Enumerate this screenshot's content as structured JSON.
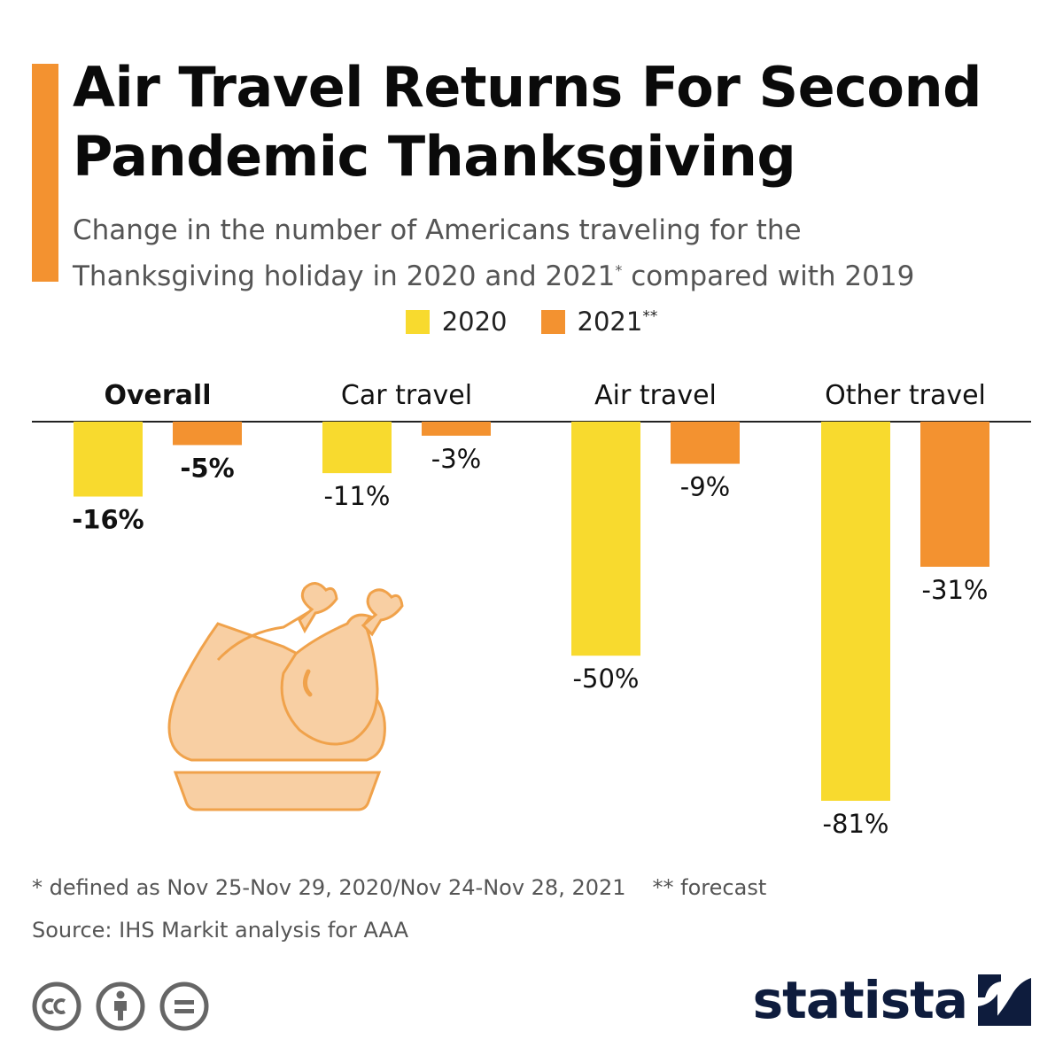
{
  "title": "Air Travel Returns For Second Pandemic Thanksgiving",
  "subtitle": {
    "line1": "Change in the number of Americans traveling for the",
    "line2_before": "Thanksgiving holiday in 2020 and 2021",
    "line2_sup": "*",
    "line2_after": " compared with 2019"
  },
  "colors": {
    "accent": "#F39230",
    "s2020": "#F8DA2E",
    "s2021": "#F39230",
    "logo": "#0e1c3d"
  },
  "chart_data": {
    "type": "bar",
    "categories": [
      "Overall",
      "Car travel",
      "Air travel",
      "Other travel"
    ],
    "series": [
      {
        "name": "2020",
        "sup": "",
        "values": [
          -16,
          -11,
          -50,
          -81
        ],
        "labels": [
          "-16%",
          "-11%",
          "-50%",
          "-81%"
        ]
      },
      {
        "name": "2021",
        "sup": "**",
        "values": [
          -5,
          -3,
          -9,
          -31
        ],
        "labels": [
          "-5%",
          "-3%",
          "-9%",
          "-31%"
        ]
      }
    ],
    "ylim": [
      -81,
      0
    ],
    "legend": "top-center",
    "grid": false
  },
  "footnote": {
    "defined": "* defined as Nov 25-Nov 29, 2020/Nov 24-Nov 28, 2021",
    "forecast": "** forecast"
  },
  "source": "Source: IHS Markit analysis for AAA",
  "logo": {
    "text": "statista"
  },
  "icons": [
    "turkey-icon",
    "cc-icon",
    "by-icon",
    "nd-icon",
    "statista-logo-icon"
  ]
}
